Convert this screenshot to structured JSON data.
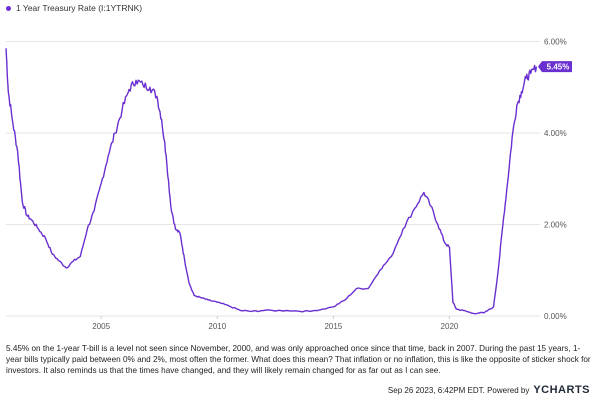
{
  "chart_data": {
    "type": "line",
    "title": "",
    "xlabel": "",
    "ylabel": "",
    "x_ticks": [
      "2005",
      "2010",
      "2015",
      "2020"
    ],
    "y_ticks": [
      "0.00%",
      "2.00%",
      "4.00%",
      "6.00%"
    ],
    "ylim": [
      0,
      6.6
    ],
    "xlim": [
      2000.9,
      2023.9
    ],
    "legend_placement": "top-left",
    "grid": "horizontal",
    "last_value_label": "5.45%",
    "series": [
      {
        "name": "1 Year Treasury Rate (I:1YTRNK)",
        "color": "#6a2fd0",
        "x": [
          2000.9,
          2001.0,
          2001.2,
          2001.4,
          2001.6,
          2001.8,
          2002.0,
          2002.3,
          2002.6,
          2002.9,
          2003.2,
          2003.5,
          2003.8,
          2004.1,
          2004.4,
          2004.7,
          2005.0,
          2005.3,
          2005.6,
          2005.9,
          2006.2,
          2006.5,
          2006.8,
          2007.1,
          2007.4,
          2007.6,
          2007.8,
          2008.0,
          2008.2,
          2008.4,
          2008.6,
          2008.8,
          2009.0,
          2009.3,
          2009.6,
          2010.0,
          2010.5,
          2011.0,
          2011.5,
          2012.0,
          2013.0,
          2014.0,
          2015.0,
          2015.5,
          2016.0,
          2016.5,
          2017.0,
          2017.5,
          2018.0,
          2018.5,
          2018.9,
          2019.2,
          2019.5,
          2019.8,
          2020.0,
          2020.15,
          2020.3,
          2020.6,
          2021.0,
          2021.5,
          2021.9,
          2022.1,
          2022.3,
          2022.5,
          2022.7,
          2022.9,
          2023.1,
          2023.3,
          2023.5,
          2023.75
        ],
        "values": [
          5.85,
          4.9,
          4.2,
          3.6,
          2.5,
          2.2,
          2.1,
          1.9,
          1.7,
          1.35,
          1.2,
          1.05,
          1.2,
          1.3,
          1.9,
          2.3,
          2.9,
          3.5,
          4.0,
          4.5,
          4.95,
          5.15,
          5.05,
          5.0,
          4.8,
          4.3,
          3.5,
          2.4,
          1.9,
          1.8,
          1.2,
          0.7,
          0.45,
          0.4,
          0.35,
          0.3,
          0.22,
          0.12,
          0.1,
          0.12,
          0.12,
          0.1,
          0.2,
          0.35,
          0.6,
          0.6,
          1.0,
          1.3,
          1.9,
          2.35,
          2.7,
          2.4,
          2.0,
          1.6,
          1.5,
          0.3,
          0.15,
          0.12,
          0.06,
          0.07,
          0.2,
          1.0,
          2.0,
          2.9,
          3.9,
          4.6,
          4.9,
          5.2,
          5.3,
          5.45
        ]
      }
    ]
  },
  "caption": "5.45% on the 1-year T-bill is a level not seen since November, 2000, and was only approached once since that time, back in 2007. During the past 15 years, 1-year bills typically paid between 0% and 2%, most often the former.  What does this mean? That inflation or no inflation, this is like the opposite of sticker shock for investors. It also reminds us that the times have changed, and they will likely remain changed for as far out as I can see.",
  "footer": {
    "timestamp": "Sep 26 2023, 6:42PM EDT.  Powered by",
    "brand": "YCHARTS"
  }
}
